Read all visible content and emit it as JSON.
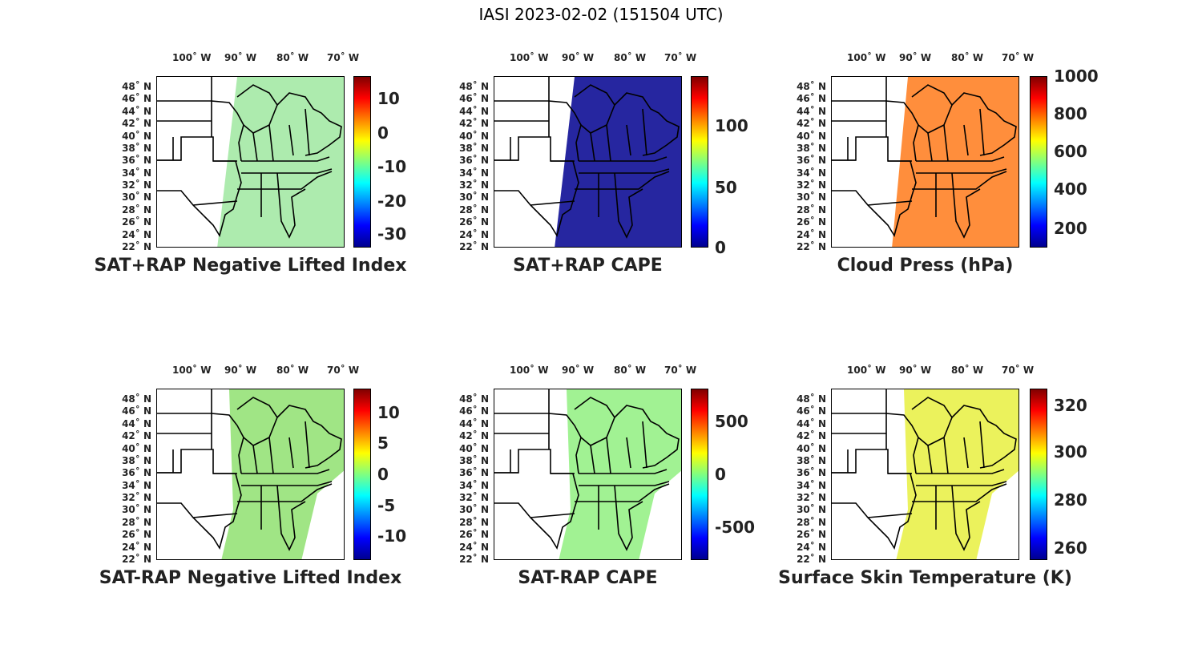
{
  "figure_title": "IASI 2023-02-02 (151504 UTC)",
  "lon_labels": [
    "100˚ W",
    "90˚ W",
    "80˚ W",
    "70˚ W"
  ],
  "lat_labels": [
    "48˚ N",
    "46˚ N",
    "44˚ N",
    "42˚ N",
    "40˚ N",
    "38˚ N",
    "36˚ N",
    "34˚ N",
    "32˚ N",
    "30˚ N",
    "28˚ N",
    "26˚ N",
    "24˚ N",
    "22˚ N"
  ],
  "colormap": "jet",
  "panels": [
    {
      "title": "SAT+RAP Negative Lifted Index",
      "ticks": [
        "10",
        "0",
        "-10",
        "-20",
        "-30"
      ],
      "field_color": "#9fe8a0"
    },
    {
      "title": "SAT+RAP CAPE",
      "ticks": [
        "100",
        "50",
        "0"
      ],
      "field_color": "#00008f"
    },
    {
      "title": "Cloud Press (hPa)",
      "ticks": [
        "1000",
        "800",
        "600",
        "400",
        "200"
      ],
      "field_color": "#ff7a1a"
    },
    {
      "title": "SAT-RAP Negative Lifted Index",
      "ticks": [
        "10",
        "5",
        "0",
        "-5",
        "-10"
      ],
      "field_color": "#8fe070"
    },
    {
      "title": "SAT-RAP CAPE",
      "ticks": [
        "500",
        "0",
        "-500"
      ],
      "field_color": "#90f080"
    },
    {
      "title": "Surface Skin Temperature (K)",
      "ticks": [
        "320",
        "300",
        "280",
        "260"
      ],
      "field_color": "#e8f040"
    }
  ]
}
